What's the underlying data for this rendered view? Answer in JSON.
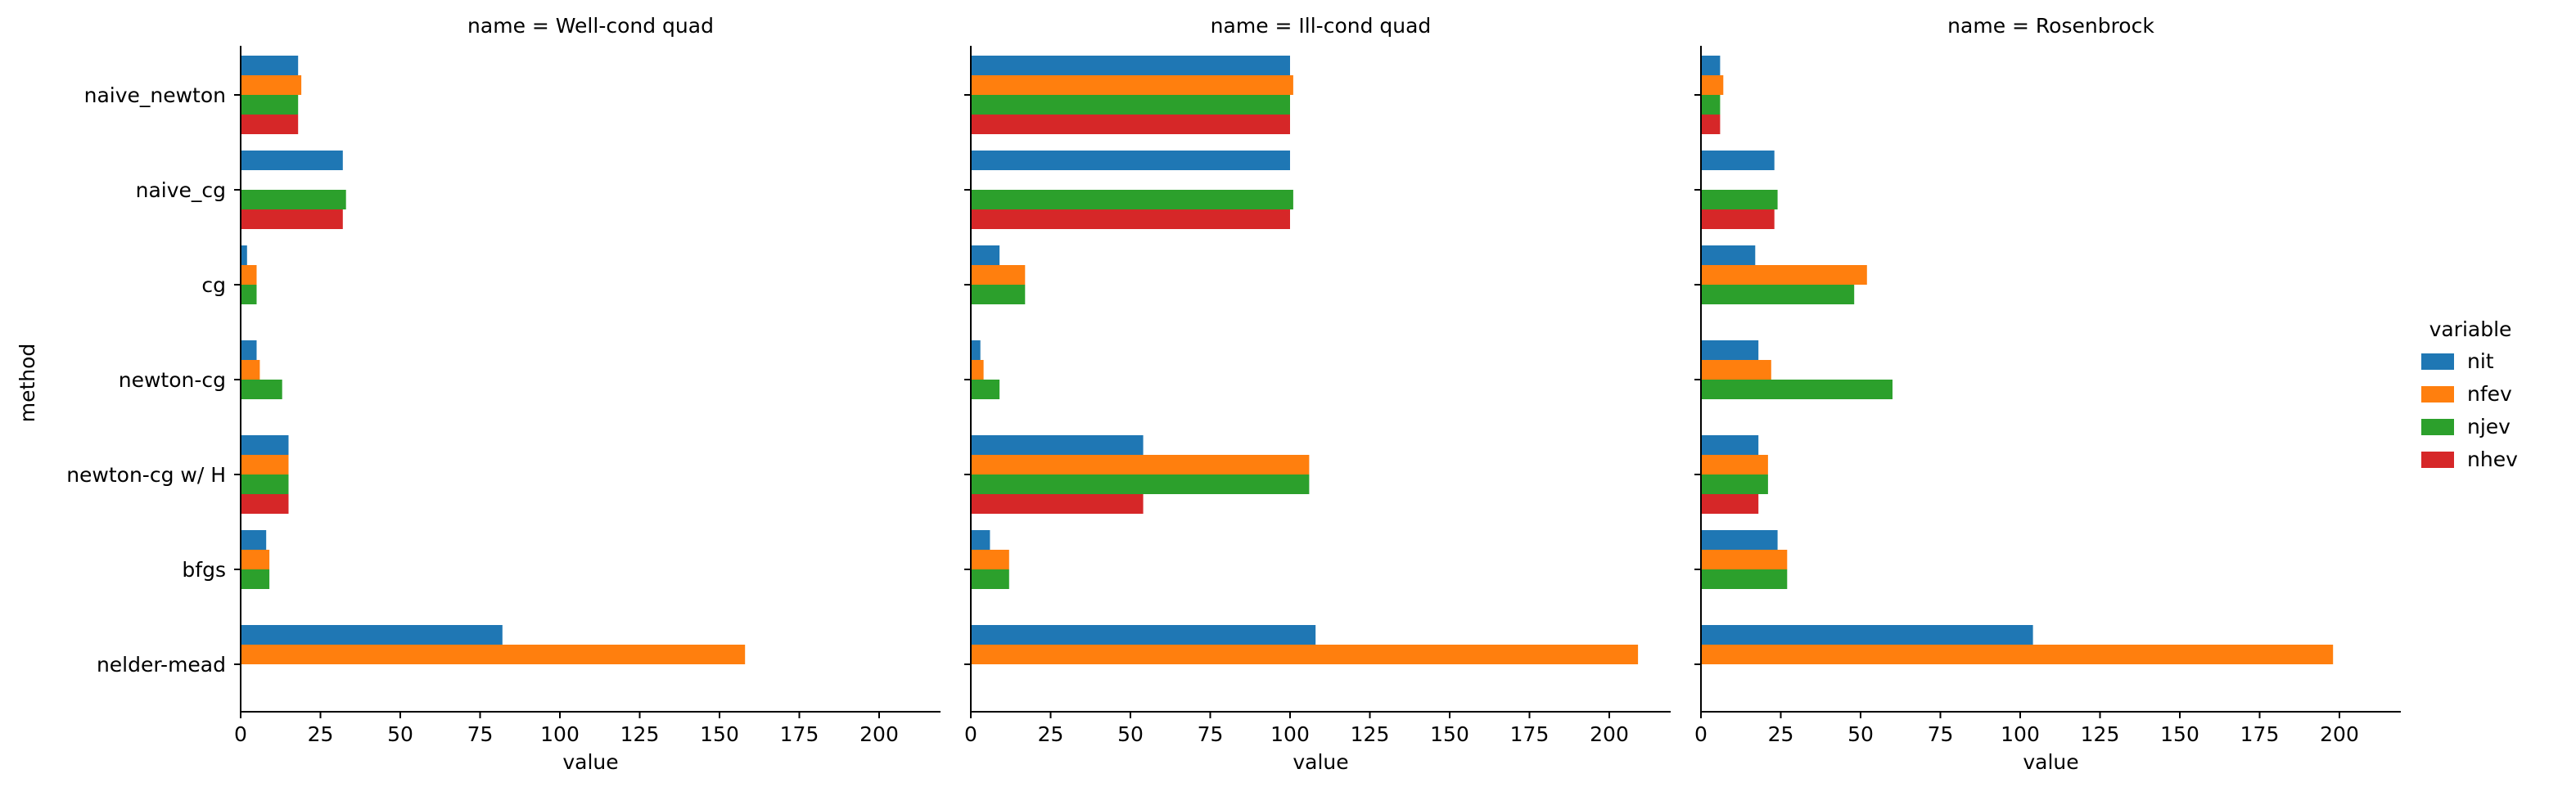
{
  "chart_data": {
    "type": "bar",
    "orientation": "horizontal",
    "ylabel": "method",
    "xlabel": "value",
    "xlim": [
      0,
      220
    ],
    "xticks": [
      0,
      25,
      50,
      75,
      100,
      125,
      150,
      175,
      200
    ],
    "categories": [
      "naive_newton",
      "naive_cg",
      "cg",
      "newton-cg",
      "newton-cg w/ H",
      "bfgs",
      "nelder-mead"
    ],
    "legend": {
      "title": "variable",
      "position": "right",
      "entries": [
        "nit",
        "nfev",
        "njev",
        "nhev"
      ]
    },
    "colors": {
      "nit": "#1f77b4",
      "nfev": "#ff7f0e",
      "njev": "#2ca02c",
      "nhev": "#d62728"
    },
    "grid": false,
    "panels": [
      {
        "title": "name = Well-cond quad",
        "series": [
          {
            "name": "nit",
            "values": [
              18,
              32,
              2,
              5,
              15,
              8,
              82
            ]
          },
          {
            "name": "nfev",
            "values": [
              19,
              0,
              5,
              6,
              15,
              9,
              158
            ]
          },
          {
            "name": "njev",
            "values": [
              18,
              33,
              5,
              13,
              15,
              9,
              0
            ]
          },
          {
            "name": "nhev",
            "values": [
              18,
              32,
              0,
              0,
              15,
              0,
              0
            ]
          }
        ]
      },
      {
        "title": "name = Ill-cond quad",
        "series": [
          {
            "name": "nit",
            "values": [
              100,
              100,
              9,
              3,
              54,
              6,
              108
            ]
          },
          {
            "name": "nfev",
            "values": [
              101,
              0,
              17,
              4,
              106,
              12,
              209
            ]
          },
          {
            "name": "njev",
            "values": [
              100,
              101,
              17,
              9,
              106,
              12,
              0
            ]
          },
          {
            "name": "nhev",
            "values": [
              100,
              100,
              0,
              0,
              54,
              0,
              0
            ]
          }
        ]
      },
      {
        "title": "name = Rosenbrock",
        "series": [
          {
            "name": "nit",
            "values": [
              6,
              23,
              17,
              18,
              18,
              24,
              104
            ]
          },
          {
            "name": "nfev",
            "values": [
              7,
              0,
              52,
              22,
              21,
              27,
              198
            ]
          },
          {
            "name": "njev",
            "values": [
              6,
              24,
              48,
              60,
              21,
              27,
              0
            ]
          },
          {
            "name": "nhev",
            "values": [
              6,
              23,
              0,
              0,
              18,
              0,
              0
            ]
          }
        ]
      }
    ]
  }
}
